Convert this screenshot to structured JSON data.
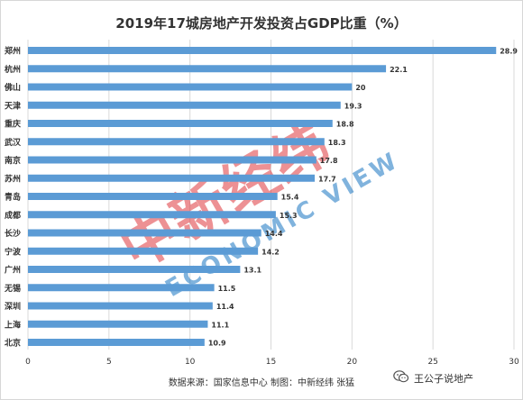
{
  "chart_data": {
    "type": "bar",
    "orientation": "horizontal",
    "title": "2019年17城房地产开发投资占GDP比重（%）",
    "categories": [
      "郑州",
      "杭州",
      "佛山",
      "天津",
      "重庆",
      "武汉",
      "南京",
      "苏州",
      "青岛",
      "成都",
      "长沙",
      "宁波",
      "广州",
      "无锡",
      "深圳",
      "上海",
      "北京"
    ],
    "values": [
      28.9,
      22.1,
      20,
      19.3,
      18.8,
      18.3,
      17.8,
      17.7,
      15.4,
      15.3,
      14.4,
      14.2,
      13.1,
      11.5,
      11.4,
      11.1,
      10.9
    ],
    "value_labels": [
      "28.9",
      "22.1",
      "20",
      "19.3",
      "18.8",
      "18.3",
      "17.8",
      "17.7",
      "15.4",
      "15.3",
      "14.4",
      "14.2",
      "13.1",
      "11.5",
      "11.4",
      "11.1",
      "10.9"
    ],
    "xlim": [
      0,
      30
    ],
    "xticks": [
      0,
      5,
      10,
      15,
      20,
      25,
      30
    ],
    "xlabel": "",
    "ylabel": "",
    "grid": "vertical",
    "legend": "none"
  },
  "colors": {
    "bar": "#5b9bd5",
    "grid": "#d9d9d9",
    "text": "#333333",
    "watermark_red": "#e0393e",
    "watermark_blue": "#1a76c2"
  },
  "watermark": {
    "cn_text": "中新经纬",
    "en_text": "ECONOMIC VIEW"
  },
  "footer": {
    "source": "数据来源：国家信息中心 制图：中新经纬 张猛",
    "brand_icon": "wechat-icon",
    "brand_label": "王公子说地产"
  }
}
